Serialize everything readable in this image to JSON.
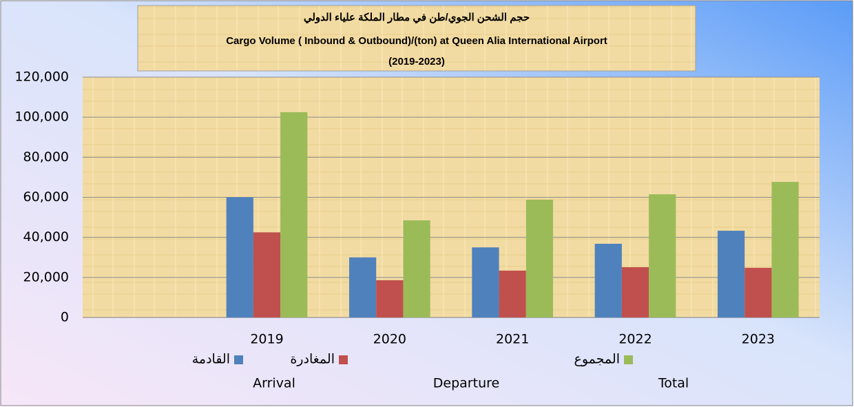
{
  "chart_data": {
    "type": "bar",
    "title": [
      "حجم الشحن الجوي/طن في  مطار الملكة علياء الدولي",
      "Cargo Volume ( Inbound & Outbound)/(ton) at Queen Alia International Airport",
      "(2019-2023)"
    ],
    "categories": [
      null,
      "2019",
      "2020",
      "2021",
      "2022",
      "2023"
    ],
    "series": [
      {
        "name": "القادمة",
        "name_en": "Arrival",
        "color": "#4f81bd",
        "values": [
          null,
          60000,
          30000,
          35000,
          36800,
          43300
        ]
      },
      {
        "name": "المغادرة",
        "name_en": "Departure",
        "color": "#c0504d",
        "values": [
          null,
          42500,
          18600,
          23400,
          25100,
          24800
        ]
      },
      {
        "name": "المجموع",
        "name_en": "Total",
        "color": "#9bbb59",
        "values": [
          null,
          102500,
          48500,
          58800,
          61500,
          67700
        ]
      }
    ],
    "ylim": [
      0,
      120000
    ],
    "yticks": [
      0,
      {
        "value": 20000,
        "label": "20,000"
      },
      {
        "value": 40000,
        "label": "40,000"
      },
      {
        "value": 60000,
        "label": "60,000"
      },
      {
        "value": 80000,
        "label": "80,000"
      },
      {
        "value": 100000,
        "label": "100,000"
      },
      {
        "value": 120000,
        "label": "120,000"
      }
    ],
    "grid": true
  }
}
